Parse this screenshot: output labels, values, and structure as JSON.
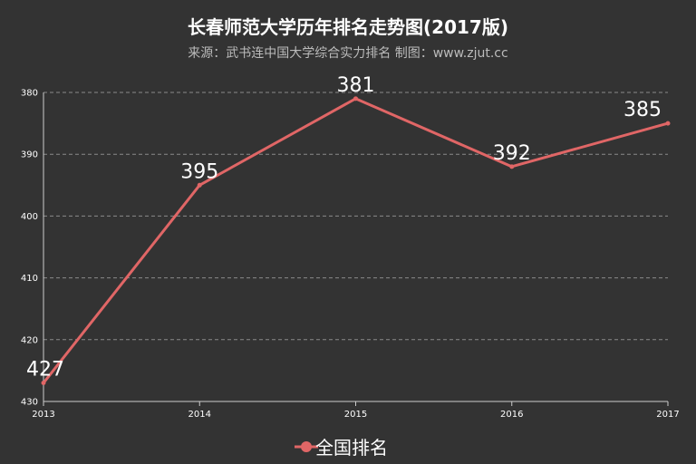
{
  "chart_data": {
    "type": "line",
    "title": "长春师范大学历年排名走势图(2017版)",
    "subtitle": "来源：武书连中国大学综合实力排名 制图：www.zjut.cc",
    "x": [
      "2013",
      "2014",
      "2015",
      "2016",
      "2017"
    ],
    "series": [
      {
        "name": "全国排名",
        "values": [
          427,
          395,
          381,
          392,
          385
        ]
      }
    ],
    "y_ticks": [
      380,
      390,
      400,
      410,
      420,
      430
    ],
    "ylim": [
      380,
      430
    ],
    "y_inverted": true,
    "grid": true,
    "legend_position": "bottom-center",
    "line_color": "#e06666"
  }
}
